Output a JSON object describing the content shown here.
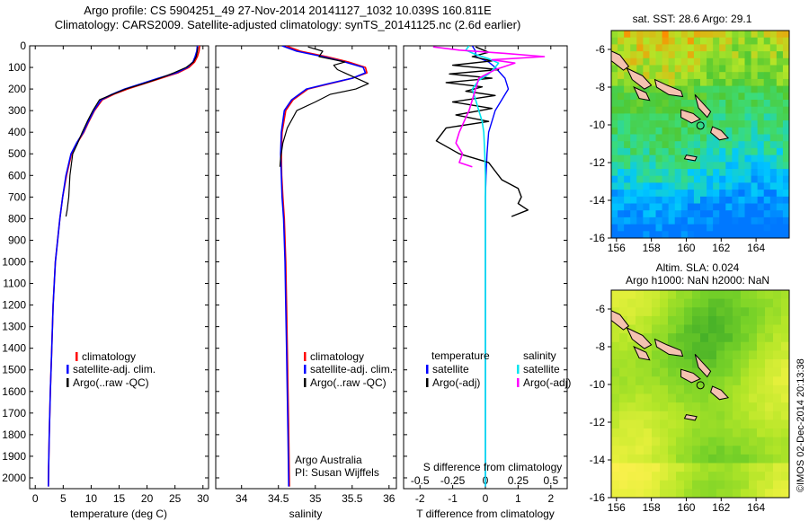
{
  "header": {
    "line1": "Argo profile: CS 5904251_49 27-Nov-2014 20141127_1032 10.039S 160.811E",
    "line2": "Climatology: CARS2009. Satellite-adjusted climatology: synTS_20141125.nc (2.6d earlier)"
  },
  "depth_ticks": [
    0,
    100,
    200,
    300,
    400,
    500,
    600,
    700,
    800,
    900,
    1000,
    1100,
    1200,
    1300,
    1400,
    1500,
    1600,
    1700,
    1800,
    1900,
    2000
  ],
  "legends": {
    "temp": [
      "climatology",
      "satellite-adj. clim.",
      "Argo(..raw -QC)"
    ],
    "sal": [
      "climatology",
      "satellite-adj. clim.",
      "Argo(..raw -QC)"
    ],
    "diff_head_t": "temperature",
    "diff_head_s": "salinity",
    "diff_t": [
      "satellite",
      "Argo(-adj)"
    ],
    "diff_s": [
      "satellite",
      "Argo(-adj)"
    ]
  },
  "credits": {
    "org": "Argo Australia",
    "pi": "PI: Susan Wijffels"
  },
  "maps": {
    "sst_title": "sat. SST: 28.6  Argo: 29.1",
    "sla_title1": "Altim. SLA: 0.024",
    "sla_title2": "Argo h1000: NaN h2000: NaN",
    "lat_ticks": [
      "-6",
      "-8",
      "-10",
      "-12",
      "-14",
      "-16"
    ],
    "lon_ticks": [
      "156",
      "158",
      "160",
      "162",
      "164"
    ]
  },
  "stamp": "©IMOS 02-Dec-2014 20:13:38",
  "colors": {
    "climatology": "#ff0000",
    "satellite": "#0000ff",
    "argo": "#000000",
    "sal_sat": "#00e5ee",
    "sal_argo": "#ff00ff",
    "land": "#f4c2b0"
  },
  "chart_data": [
    {
      "type": "line",
      "name": "temperature-profile",
      "xlabel": "temperature (deg C)",
      "ylabel": "",
      "xlim": [
        -1,
        31
      ],
      "ylim": [
        2050,
        0
      ],
      "xticks": [
        0,
        5,
        10,
        15,
        20,
        25,
        30
      ],
      "series": [
        {
          "name": "climatology",
          "x": [
            29.4,
            29.3,
            29,
            28.5,
            27.5,
            25.5,
            22.5,
            19.5,
            16.5,
            14,
            12,
            10.6,
            9.6,
            8.7,
            7.5,
            6.5,
            5.6,
            4.9,
            4.4,
            4.0,
            3.6,
            3.2,
            2.95,
            2.7,
            2.5,
            2.4,
            2.35
          ],
          "y": [
            0,
            25,
            50,
            75,
            100,
            125,
            150,
            175,
            200,
            225,
            250,
            300,
            350,
            400,
            450,
            500,
            600,
            700,
            800,
            900,
            1000,
            1200,
            1400,
            1600,
            1800,
            1950,
            2040
          ]
        },
        {
          "name": "satellite-adj. clim.",
          "x": [
            29.0,
            28.9,
            28.6,
            28.2,
            27.2,
            25.2,
            22,
            19,
            16,
            13.7,
            11.8,
            10.5,
            9.5,
            8.6,
            7.4,
            6.4,
            5.5,
            4.9,
            4.4,
            4.0,
            3.6,
            3.2,
            2.95,
            2.7,
            2.5,
            2.4,
            2.35
          ],
          "y": [
            0,
            25,
            50,
            75,
            100,
            125,
            150,
            175,
            200,
            225,
            250,
            300,
            350,
            400,
            450,
            500,
            600,
            700,
            800,
            900,
            1000,
            1200,
            1400,
            1600,
            1800,
            1950,
            2040
          ]
        },
        {
          "name": "Argo(..raw -QC)",
          "x": [
            29.1,
            29.0,
            28.8,
            28.3,
            27.0,
            24.8,
            22.3,
            19.4,
            16.2,
            13.8,
            11.5,
            10.3,
            9.3,
            8.4,
            7.6,
            6.7,
            6.2,
            6.0,
            5.7,
            5.5
          ],
          "y": [
            5,
            25,
            50,
            75,
            100,
            125,
            150,
            175,
            200,
            225,
            250,
            300,
            350,
            400,
            450,
            500,
            600,
            700,
            760,
            790
          ]
        }
      ]
    },
    {
      "type": "line",
      "name": "salinity-profile",
      "xlabel": "salinity",
      "ylabel": "",
      "xlim": [
        33.65,
        36.1
      ],
      "ylim": [
        2050,
        0
      ],
      "xticks": [
        34,
        34.5,
        35,
        35.5,
        36
      ],
      "series": [
        {
          "name": "climatology",
          "x": [
            34.6,
            34.8,
            35.15,
            35.45,
            35.68,
            35.7,
            35.5,
            35.2,
            34.9,
            34.7,
            34.6,
            34.55,
            34.54,
            34.545,
            34.56,
            34.58,
            34.6,
            34.61,
            34.62,
            34.63,
            34.64,
            34.65
          ],
          "y": [
            0,
            25,
            50,
            75,
            100,
            125,
            150,
            175,
            200,
            250,
            300,
            400,
            500,
            600,
            700,
            800,
            1000,
            1200,
            1400,
            1600,
            1800,
            2040
          ]
        },
        {
          "name": "satellite-adj. clim.",
          "x": [
            34.55,
            34.75,
            35.1,
            35.4,
            35.65,
            35.68,
            35.5,
            35.18,
            34.88,
            34.68,
            34.58,
            34.54,
            34.53,
            34.54,
            34.55,
            34.57,
            34.59,
            34.6,
            34.61,
            34.62,
            34.63,
            34.64
          ],
          "y": [
            0,
            25,
            50,
            75,
            100,
            125,
            150,
            175,
            200,
            250,
            300,
            400,
            500,
            600,
            700,
            800,
            1000,
            1200,
            1400,
            1600,
            1800,
            2040
          ]
        },
        {
          "name": "Argo(..raw -QC)",
          "x": [
            34.9,
            35.1,
            35.05,
            35.4,
            35.25,
            35.3,
            35.72,
            35.55,
            35.2,
            35.0,
            34.75,
            34.62,
            34.56,
            34.53,
            34.52
          ],
          "y": [
            5,
            25,
            50,
            75,
            90,
            110,
            175,
            200,
            225,
            260,
            300,
            380,
            450,
            520,
            560
          ]
        }
      ]
    },
    {
      "type": "line",
      "name": "difference-from-climatology",
      "xlabel": "T difference from climatology",
      "x2label": "S difference from climatology",
      "xlim": [
        -2.5,
        2.5
      ],
      "ylim": [
        2050,
        0
      ],
      "xticks": [
        -2,
        -1,
        0,
        1,
        2
      ],
      "x2ticks": [
        "-0.5",
        "-0.25",
        "0",
        "0.25",
        "0.5"
      ],
      "series": [
        {
          "name": "temperature satellite",
          "x": [
            -0.4,
            -0.3,
            -0.3,
            0.1,
            0.3,
            0.6,
            0.7,
            0.5,
            0.3,
            0.1,
            0.05,
            0.02,
            0,
            0,
            0,
            0,
            0,
            0
          ],
          "y": [
            0,
            25,
            50,
            75,
            100,
            150,
            200,
            250,
            300,
            400,
            500,
            600,
            700,
            800,
            1000,
            1400,
            1800,
            2040
          ]
        },
        {
          "name": "temperature Argo(-adj)",
          "x": [
            -0.3,
            0.1,
            -0.4,
            0.2,
            -1.0,
            0.4,
            -1.1,
            0.2,
            -1.2,
            -0.1,
            -0.6,
            0.3,
            -1.0,
            0.2,
            -0.9,
            0.1,
            -1.2,
            -1.5,
            -0.8,
            0.1,
            0.3,
            0.5,
            1.0,
            1.1,
            1.0,
            1.3,
            0.8
          ],
          "y": [
            5,
            30,
            50,
            70,
            90,
            110,
            130,
            150,
            170,
            190,
            210,
            230,
            260,
            290,
            320,
            350,
            380,
            440,
            500,
            540,
            580,
            620,
            660,
            700,
            730,
            760,
            790
          ]
        },
        {
          "name": "salinity satellite",
          "x": [
            -0.5,
            -0.6,
            -0.3,
            0.1,
            0.4,
            0.3,
            0.1,
            -0.2,
            -0.4,
            -0.3,
            -0.2,
            -0.1,
            -0.05,
            -0.02,
            0,
            0,
            0,
            0,
            0
          ],
          "y": [
            0,
            20,
            40,
            60,
            80,
            100,
            130,
            160,
            200,
            250,
            300,
            350,
            400,
            500,
            600,
            800,
            1200,
            1600,
            2040
          ]
        },
        {
          "name": "salinity Argo(-adj)",
          "x": [
            -1.6,
            -0.8,
            0.6,
            1.8,
            0.2,
            0.9,
            0.3,
            -0.2,
            -0.3,
            -0.5,
            -0.8,
            -0.9,
            -0.7,
            -0.8,
            -0.4
          ],
          "y": [
            5,
            20,
            35,
            50,
            65,
            80,
            110,
            150,
            200,
            300,
            400,
            450,
            500,
            540,
            560
          ]
        }
      ]
    }
  ]
}
